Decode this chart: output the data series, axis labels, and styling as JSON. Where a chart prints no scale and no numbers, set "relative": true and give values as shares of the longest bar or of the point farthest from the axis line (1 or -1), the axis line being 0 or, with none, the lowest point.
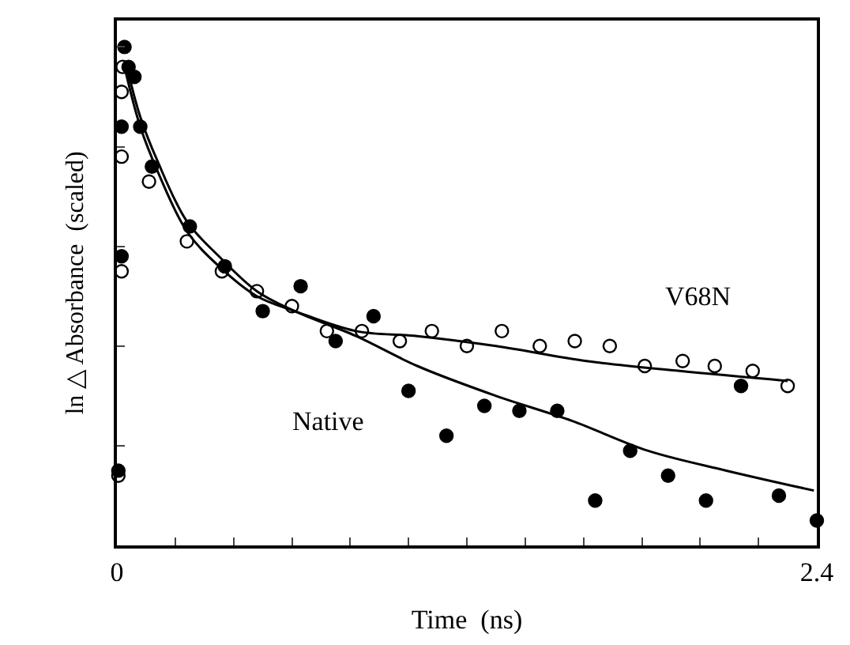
{
  "chart_data": {
    "type": "scatter",
    "relative": true,
    "xlabel": "Time  (ns)",
    "ylabel": "ln △ Absorbance  (scaled)",
    "xlim": [
      0,
      2.4
    ],
    "xticks": [
      0,
      {
        "value": 0.2,
        "label": null
      },
      {
        "value": 0.4,
        "label": null
      },
      {
        "value": 0.6,
        "label": null
      },
      {
        "value": 0.8,
        "label": null
      },
      {
        "value": 1.0,
        "label": null
      },
      {
        "value": 1.2,
        "label": null
      },
      {
        "value": 1.4,
        "label": null
      },
      {
        "value": 1.6,
        "label": null
      },
      {
        "value": 1.8,
        "label": null
      },
      {
        "value": 2.0,
        "label": null
      },
      {
        "value": 2.2,
        "label": null
      },
      2.4
    ],
    "legend": false,
    "series": [
      {
        "name": "Native",
        "marker": "circle",
        "color": "#000000",
        "x": [
          0.005,
          0.016,
          0.016,
          0.026,
          0.04,
          0.06,
          0.08,
          0.12,
          0.25,
          0.37,
          0.5,
          0.63,
          0.75,
          0.88,
          1.0,
          1.13,
          1.26,
          1.38,
          1.51,
          1.64,
          1.76,
          1.89,
          2.02,
          2.14,
          2.27,
          2.4
        ],
        "values": [
          0.15,
          0.58,
          0.84,
          1.0,
          0.96,
          0.94,
          0.84,
          0.76,
          0.64,
          0.56,
          0.47,
          0.52,
          0.41,
          0.46,
          0.31,
          0.22,
          0.28,
          0.27,
          0.27,
          0.09,
          0.19,
          0.14,
          0.09,
          0.32,
          0.1,
          0.05
        ]
      },
      {
        "name": "V68N",
        "marker": "circle-open",
        "color": "#000000",
        "x": [
          0.005,
          0.016,
          0.016,
          0.016,
          0.02,
          0.11,
          0.24,
          0.36,
          0.48,
          0.6,
          0.72,
          0.84,
          0.97,
          1.08,
          1.2,
          1.32,
          1.45,
          1.57,
          1.69,
          1.81,
          1.94,
          2.05,
          2.18,
          2.3
        ],
        "values": [
          0.14,
          0.55,
          0.78,
          0.91,
          0.96,
          0.73,
          0.61,
          0.55,
          0.51,
          0.48,
          0.43,
          0.43,
          0.41,
          0.43,
          0.4,
          0.43,
          0.4,
          0.41,
          0.4,
          0.36,
          0.37,
          0.36,
          0.35,
          0.32
        ]
      },
      {
        "type": "line",
        "color": "#000000",
        "x": [
          0.03,
          0.08,
          0.14,
          0.24,
          0.35,
          0.48,
          0.61,
          0.82,
          1.03,
          1.3,
          1.56,
          1.82,
          2.09,
          2.39
        ],
        "values": [
          0.97,
          0.86,
          0.77,
          0.65,
          0.58,
          0.51,
          0.47,
          0.42,
          0.36,
          0.3,
          0.25,
          0.19,
          0.15,
          0.11
        ]
      },
      {
        "type": "line",
        "color": "#000000",
        "x": [
          0.03,
          0.08,
          0.14,
          0.24,
          0.35,
          0.48,
          0.61,
          0.82,
          1.03,
          1.3,
          1.61,
          1.93,
          2.3
        ],
        "values": [
          0.95,
          0.84,
          0.75,
          0.63,
          0.56,
          0.5,
          0.47,
          0.43,
          0.42,
          0.4,
          0.37,
          0.35,
          0.33
        ]
      }
    ]
  }
}
